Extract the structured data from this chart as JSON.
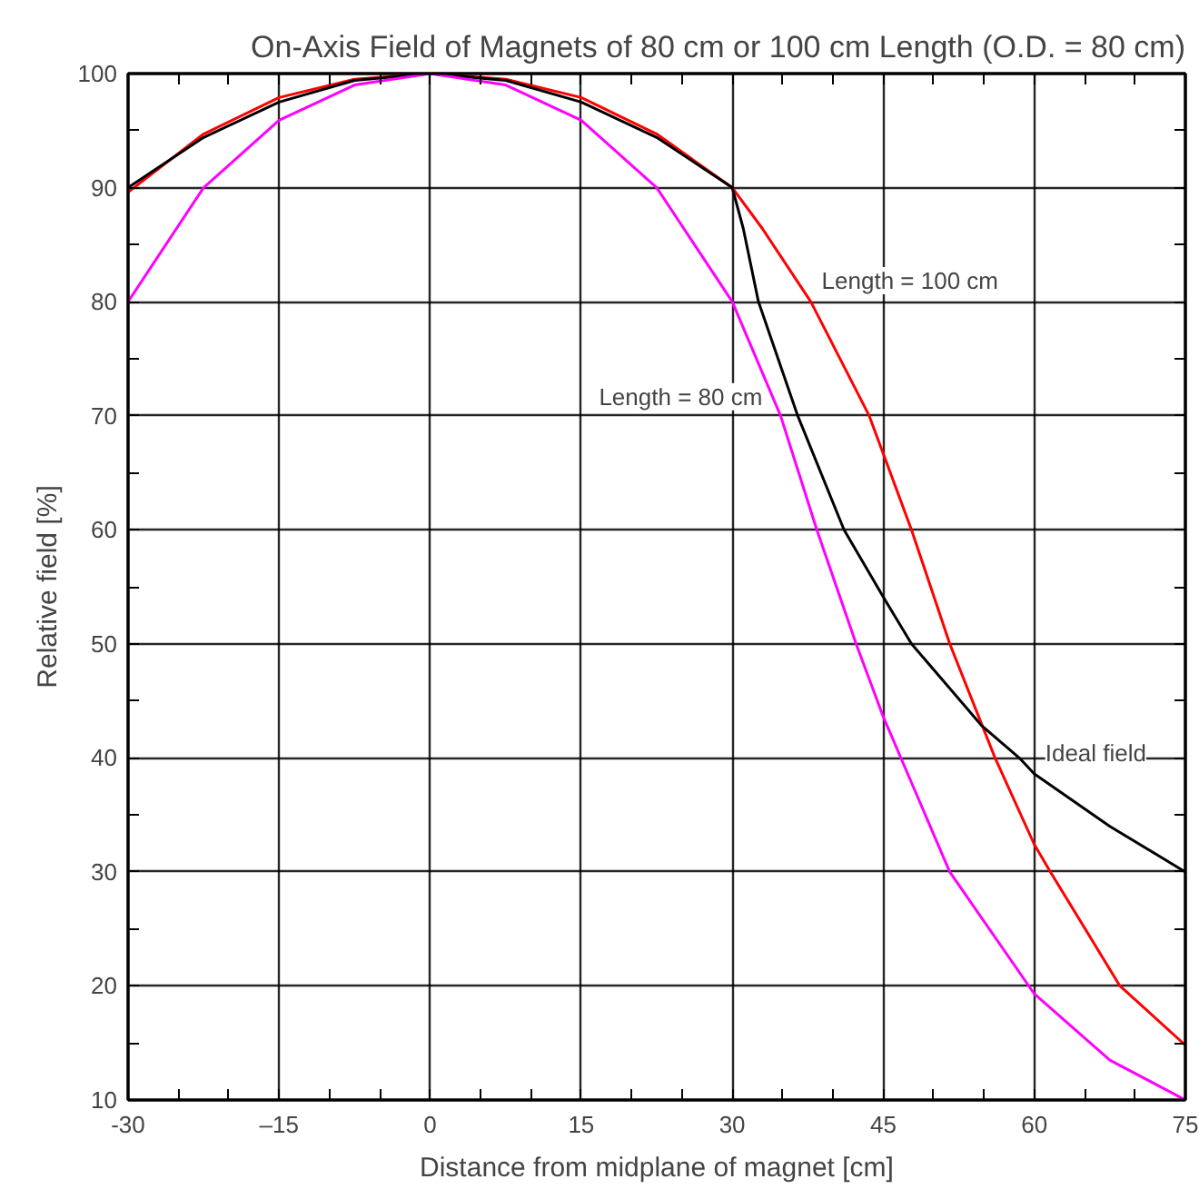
{
  "chart_data": {
    "type": "line",
    "title": "On-Axis Field of Magnets of 80 cm or 100 cm Length (O.D. = 80 cm)",
    "xlabel": "Distance from midplane of magnet [cm]",
    "ylabel": "Relative field [%]",
    "xlim": [
      -30,
      75
    ],
    "ylim": [
      10,
      100
    ],
    "xticks": [
      -30,
      {
        "value": -25,
        "label": null
      },
      {
        "value": -20,
        "label": null
      },
      {
        "value": -15,
        "label": "–15"
      },
      {
        "value": -10,
        "label": null
      },
      {
        "value": -5,
        "label": null
      },
      0,
      {
        "value": 5,
        "label": null
      },
      {
        "value": 10,
        "label": null
      },
      15,
      {
        "value": 20,
        "label": null
      },
      {
        "value": 25,
        "label": null
      },
      30,
      {
        "value": 35,
        "label": null
      },
      {
        "value": 40,
        "label": null
      },
      45,
      {
        "value": 50,
        "label": null
      },
      {
        "value": 55,
        "label": null
      },
      60,
      {
        "value": 65,
        "label": null
      },
      {
        "value": 70,
        "label": null
      },
      75
    ],
    "yticks": [
      10,
      {
        "value": 15,
        "label": null
      },
      20,
      {
        "value": 25,
        "label": null
      },
      30,
      {
        "value": 35,
        "label": null
      },
      40,
      {
        "value": 45,
        "label": null
      },
      50,
      {
        "value": 55,
        "label": null
      },
      60,
      {
        "value": 65,
        "label": null
      },
      70,
      {
        "value": 75,
        "label": null
      },
      80,
      {
        "value": 85,
        "label": null
      },
      90,
      {
        "value": 95,
        "label": null
      },
      100
    ],
    "grid": true,
    "marker": "none",
    "line_style": "solid",
    "series": [
      {
        "color": "#ff0000",
        "x": [
          -30,
          -22.5,
          -15,
          -7.5,
          0,
          7.5,
          15,
          22.5,
          30,
          33,
          37.8,
          43.6,
          47.8,
          51.6,
          56.1,
          60,
          61.6,
          68.5,
          75
        ],
        "values": [
          89.6,
          94.7,
          97.9,
          99.5,
          100,
          99.5,
          97.9,
          94.7,
          90,
          86.4,
          80,
          70,
          60,
          50,
          40,
          32.4,
          30,
          20,
          14.8
        ]
      },
      {
        "color": "#000000",
        "x": [
          -30,
          -22.5,
          -15,
          -7.5,
          0,
          7.5,
          15,
          22.5,
          30,
          31.1,
          32.6,
          36.5,
          41.1,
          45,
          47.8,
          54.8,
          58.5,
          60,
          67.5,
          75
        ],
        "values": [
          90,
          94.4,
          97.5,
          99.4,
          100,
          99.4,
          97.5,
          94.4,
          90,
          86.4,
          80,
          70,
          60,
          54.1,
          50,
          42.8,
          40,
          38.6,
          34,
          30
        ]
      },
      {
        "color": "#ff00ff",
        "x": [
          -30,
          -22.5,
          -15,
          -7.5,
          0,
          7.5,
          15,
          22.5,
          30,
          34.8,
          38.4,
          42.3,
          45,
          51.6,
          60,
          67.5,
          75
        ],
        "values": [
          80,
          90,
          95.9,
          99,
          100,
          99,
          95.9,
          90,
          80,
          70,
          60,
          50,
          43.6,
          30,
          19.3,
          13.5,
          10
        ]
      }
    ],
    "annotations": [
      {
        "text": "Length = 100 cm",
        "x": 37.8,
        "y": 80
      },
      {
        "text": "Length = 80 cm",
        "x": 34.8,
        "y": 70
      },
      {
        "text": "Ideal field",
        "x": 60,
        "y": 38.6
      }
    ]
  }
}
